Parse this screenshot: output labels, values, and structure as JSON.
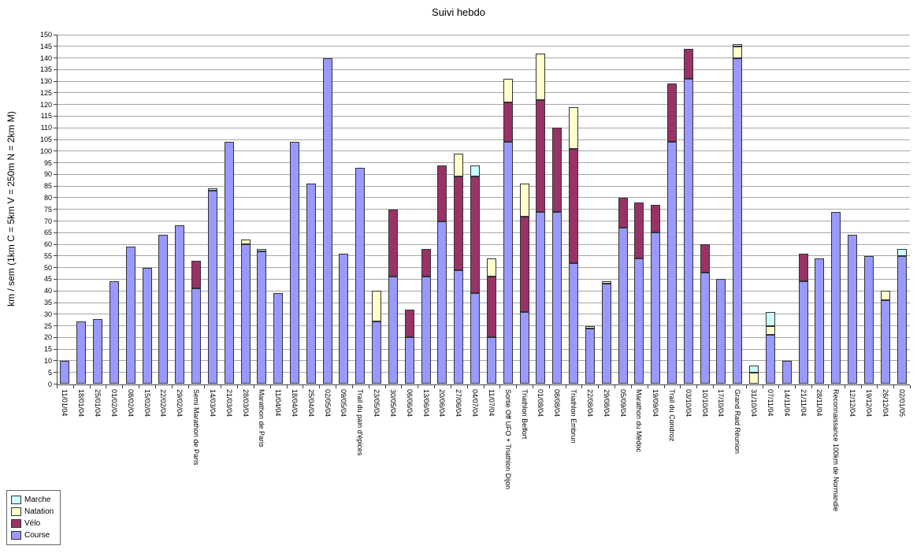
{
  "title": "Suivi hebdo",
  "legend": {
    "items": [
      {
        "label": "Marche",
        "color": "#CCFFFF"
      },
      {
        "label": "Natation",
        "color": "#FFFFCC"
      },
      {
        "label": "Vélo",
        "color": "#993366"
      },
      {
        "label": "Course",
        "color": "#9999FF"
      }
    ]
  },
  "chart_data": {
    "type": "bar",
    "stacked": true,
    "title": "Suivi hebdo",
    "xlabel": "",
    "ylabel": "km / sem (1km C = 5km V = 250m N = 2km M)",
    "ylim": [
      0,
      150
    ],
    "ytick_step": 5,
    "grid": true,
    "legend_position": "bottom-left",
    "stack_order_bottom_to_top": [
      "Course",
      "Vélo",
      "Natation",
      "Marche"
    ],
    "colors": {
      "Course": "#9999FF",
      "Vélo": "#993366",
      "Natation": "#FFFFCC",
      "Marche": "#CCFFFF"
    },
    "categories": [
      "11/01/04",
      "18/01/04",
      "25/01/04",
      "01/02/04",
      "08/02/04",
      "15/02/04",
      "22/02/04",
      "29/02/04",
      "Semi Marathon de Paris",
      "14/03/04",
      "21/03/04",
      "28/03/04",
      "Marathon de Paris",
      "11/04/04",
      "18/04/04",
      "25/04/04",
      "02/05/04",
      "09/05/04",
      "Trail du pain d'épices",
      "23/05/04",
      "30/05/04",
      "06/06/04",
      "13/06/04",
      "20/06/04",
      "27/06/04",
      "04/07/04",
      "11/07/04",
      "Sortie Off UFO + Triathlon Dijon",
      "Triathlon Belfort",
      "01/08/04",
      "08/08/04",
      "Triathlon Embrun",
      "22/08/04",
      "29/08/04",
      "05/09/04",
      "Marathon du Médoc",
      "19/09/04",
      "Trail du Condroz",
      "03/10/04",
      "10/10/04",
      "17/10/04",
      "Grand Raid Réunion",
      "31/10/04",
      "07/11/04",
      "14/11/04",
      "21/11/04",
      "28/11/04",
      "Reconnaissance 100km de Normandie",
      "12/12/04",
      "19/12/04",
      "26/12/04",
      "02/01/05"
    ],
    "series": [
      {
        "name": "Course",
        "values": [
          10,
          27,
          28,
          44,
          59,
          50,
          64,
          68,
          41,
          83,
          104,
          60,
          57,
          39,
          104,
          86,
          140,
          56,
          93,
          27,
          46,
          20,
          46,
          70,
          49,
          39,
          20,
          104,
          31,
          74,
          74,
          52,
          24,
          43,
          67,
          54,
          65,
          104,
          131,
          48,
          45,
          140,
          0,
          21,
          10,
          44,
          54,
          74,
          64,
          55,
          36,
          55
        ]
      },
      {
        "name": "Vélo",
        "values": [
          0,
          0,
          0,
          0,
          0,
          0,
          0,
          0,
          12,
          0,
          0,
          0,
          0,
          0,
          0,
          0,
          0,
          0,
          0,
          0,
          29,
          12,
          12,
          24,
          40,
          50,
          26,
          17,
          41,
          48,
          36,
          49,
          0,
          0,
          13,
          24,
          12,
          25,
          13,
          12,
          0,
          0,
          0,
          0,
          0,
          12,
          0,
          0,
          0,
          0,
          0,
          0
        ]
      },
      {
        "name": "Natation",
        "values": [
          0,
          0,
          0,
          0,
          0,
          0,
          0,
          0,
          0,
          0,
          0,
          2,
          0,
          0,
          0,
          0,
          0,
          0,
          0,
          13,
          0,
          0,
          0,
          0,
          10,
          0,
          8,
          10,
          14,
          20,
          0,
          18,
          1,
          1,
          0,
          0,
          0,
          0,
          0,
          0,
          0,
          5,
          5,
          4,
          0,
          0,
          0,
          0,
          0,
          0,
          4,
          0
        ]
      },
      {
        "name": "Marche",
        "values": [
          0,
          0,
          0,
          0,
          0,
          0,
          0,
          0,
          0,
          1,
          0,
          0,
          1,
          0,
          0,
          0,
          0,
          0,
          0,
          0,
          0,
          0,
          0,
          0,
          0,
          5,
          0,
          0,
          0,
          0,
          0,
          0,
          0,
          0,
          0,
          0,
          0,
          0,
          0,
          0,
          0,
          1,
          3,
          6,
          0,
          0,
          0,
          0,
          0,
          0,
          0,
          3
        ]
      }
    ]
  }
}
